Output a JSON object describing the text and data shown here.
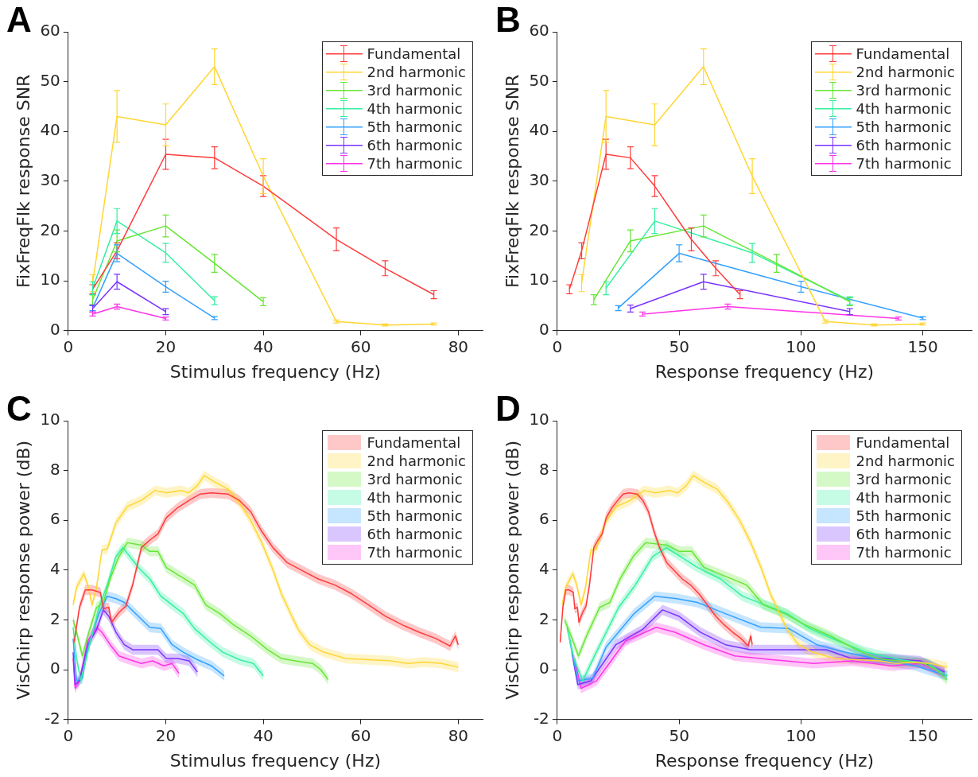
{
  "chart_data": [
    {
      "type": "line",
      "title": "A",
      "xlabel": "Stimulus frequency (Hz)",
      "ylabel": "FixFreqFlk response SNR",
      "xlim": [
        0,
        85
      ],
      "xticks": [
        0,
        20,
        40,
        60,
        80
      ],
      "ylim": [
        0,
        60
      ],
      "yticks": [
        0,
        10,
        20,
        30,
        40,
        50,
        60
      ],
      "legend": "top right",
      "series": [
        {
          "name": "Fundamental",
          "color": "#ff3b3b",
          "x": [
            5,
            10,
            20,
            30,
            40,
            55,
            65,
            75
          ],
          "values": [
            8.3,
            16,
            35.4,
            34.7,
            29,
            18.3,
            12.5,
            7.2
          ],
          "errors": [
            0.9,
            1.6,
            3,
            2.2,
            2.1,
            2.3,
            1.5,
            0.8
          ]
        },
        {
          "name": "2nd harmonic",
          "color": "#ffd633",
          "x": [
            5,
            10,
            20,
            30,
            40,
            55,
            65,
            75
          ],
          "values": [
            9.5,
            43,
            41.3,
            53,
            31,
            1.8,
            1.1,
            1.3
          ],
          "errors": [
            1.7,
            5.2,
            4.2,
            3.6,
            3.5,
            0.3,
            0.2,
            0.2
          ]
        },
        {
          "name": "3rd harmonic",
          "color": "#66e633",
          "x": [
            5,
            10,
            20,
            30,
            40
          ],
          "values": [
            6.2,
            18,
            21,
            13.5,
            5.8
          ],
          "errors": [
            1,
            2.2,
            2.2,
            1.8,
            0.8
          ]
        },
        {
          "name": "4th harmonic",
          "color": "#33f0a0",
          "x": [
            5,
            10,
            20,
            30
          ],
          "values": [
            8.5,
            22,
            15.6,
            6
          ],
          "errors": [
            1.3,
            2.5,
            1.9,
            0.8
          ]
        },
        {
          "name": "5th harmonic",
          "color": "#33a0ff",
          "x": [
            5,
            10,
            20,
            30
          ],
          "values": [
            4.5,
            15.5,
            8.8,
            2.5
          ],
          "errors": [
            0.5,
            1.7,
            1.1,
            0.3
          ]
        },
        {
          "name": "6th harmonic",
          "color": "#7a33ff",
          "x": [
            5,
            10,
            20
          ],
          "values": [
            4.4,
            9.8,
            3.8
          ],
          "errors": [
            0.7,
            1.5,
            0.6
          ]
        },
        {
          "name": "7th harmonic",
          "color": "#ff33e6",
          "x": [
            5,
            10,
            20
          ],
          "values": [
            3.3,
            4.8,
            2.4
          ],
          "errors": [
            0.4,
            0.5,
            0.3
          ]
        }
      ]
    },
    {
      "type": "line",
      "title": "B",
      "xlabel": "Response frequency (Hz)",
      "ylabel": "FixFreqFlk response SNR",
      "xlim": [
        0,
        170
      ],
      "xticks": [
        0,
        50,
        100,
        150
      ],
      "ylim": [
        0,
        60
      ],
      "yticks": [
        0,
        10,
        20,
        30,
        40,
        50,
        60
      ],
      "legend": "top right",
      "series": [
        {
          "name": "Fundamental",
          "color": "#ff3b3b",
          "x": [
            5,
            10,
            20,
            30,
            40,
            55,
            65,
            75
          ],
          "values": [
            8.3,
            16,
            35.4,
            34.7,
            29,
            18.3,
            12.5,
            7.2
          ],
          "errors": [
            0.9,
            1.6,
            3,
            2.2,
            2.1,
            2.3,
            1.5,
            0.8
          ]
        },
        {
          "name": "2nd harmonic",
          "color": "#ffd633",
          "x": [
            10,
            20,
            40,
            60,
            80,
            110,
            130,
            150
          ],
          "values": [
            9.5,
            43,
            41.3,
            53,
            31,
            1.8,
            1.1,
            1.3
          ],
          "errors": [
            1.7,
            5.2,
            4.2,
            3.6,
            3.5,
            0.3,
            0.2,
            0.2
          ]
        },
        {
          "name": "3rd harmonic",
          "color": "#66e633",
          "x": [
            15,
            30,
            60,
            90,
            120
          ],
          "values": [
            6.2,
            18,
            21,
            13.5,
            5.8
          ],
          "errors": [
            1,
            2.2,
            2.2,
            1.8,
            0.8
          ]
        },
        {
          "name": "4th harmonic",
          "color": "#33f0a0",
          "x": [
            20,
            40,
            80,
            120
          ],
          "values": [
            8.5,
            22,
            15.6,
            6
          ],
          "errors": [
            1.3,
            2.5,
            1.9,
            0.8
          ]
        },
        {
          "name": "5th harmonic",
          "color": "#33a0ff",
          "x": [
            25,
            50,
            100,
            150
          ],
          "values": [
            4.5,
            15.5,
            8.8,
            2.5
          ],
          "errors": [
            0.5,
            1.7,
            1.1,
            0.3
          ]
        },
        {
          "name": "6th harmonic",
          "color": "#7a33ff",
          "x": [
            30,
            60,
            120
          ],
          "values": [
            4.4,
            9.8,
            3.8
          ],
          "errors": [
            0.7,
            1.5,
            0.6
          ]
        },
        {
          "name": "7th harmonic",
          "color": "#ff33e6",
          "x": [
            35,
            70,
            140
          ],
          "values": [
            3.3,
            4.8,
            2.4
          ],
          "errors": [
            0.4,
            0.5,
            0.3
          ]
        }
      ]
    },
    {
      "type": "line",
      "title": "C",
      "xlabel": "Stimulus frequency (Hz)",
      "ylabel": "VisChirp response power (dB)",
      "xlim": [
        0,
        85
      ],
      "xticks": [
        0,
        20,
        40,
        60,
        80
      ],
      "ylim": [
        -2,
        10
      ],
      "yticks": [
        -2,
        0,
        2,
        4,
        6,
        8,
        10
      ],
      "legend": "top right",
      "series": [
        {
          "name": "Fundamental",
          "color": "#ff3b3b",
          "x": [
            1.2,
            2.3,
            3.5,
            4.9,
            6.6,
            7.2,
            8.3,
            8.9,
            10.4,
            11.8,
            13.2,
            15,
            16.7,
            18.4,
            20.1,
            22.4,
            24.8,
            27,
            29.4,
            32.8,
            35.1,
            37.4,
            39.7,
            42,
            44.9,
            47.8,
            51.2,
            54.7,
            58.1,
            61.6,
            65,
            68.5,
            72,
            75.4,
            78.3,
            79.4,
            80
          ],
          "values": [
            1.1,
            2.5,
            3.2,
            3.2,
            3.1,
            2.45,
            2.5,
            1.9,
            2.3,
            2.55,
            3.4,
            4.9,
            5.2,
            5.45,
            6.1,
            6.5,
            6.8,
            7.05,
            7.1,
            7.05,
            6.8,
            6.35,
            5.55,
            4.9,
            4.3,
            4,
            3.65,
            3.4,
            3.05,
            2.6,
            2.15,
            1.8,
            1.5,
            1.25,
            0.95,
            1.35,
            1
          ],
          "lower": [
            0.9,
            2.3,
            3,
            3,
            2.9,
            2.25,
            2.3,
            1.7,
            2.1,
            2.35,
            3.2,
            4.7,
            5,
            5.25,
            5.9,
            6.3,
            6.6,
            6.85,
            6.9,
            6.85,
            6.6,
            6.15,
            5.35,
            4.7,
            4.1,
            3.8,
            3.45,
            3.2,
            2.85,
            2.4,
            1.95,
            1.6,
            1.3,
            1.05,
            0.75,
            1.15,
            0.8
          ],
          "upper": [
            1.3,
            2.7,
            3.4,
            3.4,
            3.3,
            2.65,
            2.7,
            2.1,
            2.5,
            2.75,
            3.6,
            5.1,
            5.4,
            5.65,
            6.3,
            6.7,
            7,
            7.25,
            7.3,
            7.25,
            7,
            6.55,
            5.75,
            5.1,
            4.5,
            4.2,
            3.85,
            3.6,
            3.25,
            2.8,
            2.35,
            2,
            1.7,
            1.45,
            1.15,
            1.55,
            1.2
          ]
        },
        {
          "name": "2nd harmonic",
          "color": "#ffd633",
          "x": [
            1,
            1.7,
            3.2,
            4,
            4.9,
            5.8,
            6.9,
            8,
            9.8,
            12.1,
            15,
            17.8,
            20.1,
            23,
            24.7,
            26.5,
            27.9,
            29.9,
            32.8,
            35.1,
            37.4,
            39.7,
            42,
            43.7,
            45.5,
            47.2,
            49.5,
            52.4,
            56.9,
            61.6,
            66.2,
            69.7,
            73.1,
            76.6,
            80
          ],
          "values": [
            2.6,
            3.3,
            3.85,
            3.4,
            2.6,
            3.3,
            4.8,
            4.85,
            5.9,
            6.55,
            6.8,
            7.2,
            7.1,
            7.2,
            7.1,
            7.4,
            7.8,
            7.55,
            7.25,
            6.7,
            6,
            5.1,
            4,
            3.05,
            2.3,
            1.6,
            1,
            0.7,
            0.45,
            0.4,
            0.35,
            0.25,
            0.3,
            0.25,
            0.1
          ],
          "lower": [
            2.4,
            3.1,
            3.65,
            3.2,
            2.4,
            3.1,
            4.6,
            4.65,
            5.7,
            6.35,
            6.6,
            7,
            6.9,
            7,
            6.9,
            7.2,
            7.6,
            7.35,
            7.05,
            6.5,
            5.8,
            4.9,
            3.8,
            2.85,
            2.1,
            1.4,
            0.8,
            0.5,
            0.25,
            0.2,
            0.15,
            0.05,
            0.1,
            0.05,
            -0.1
          ],
          "upper": [
            2.8,
            3.5,
            4.05,
            3.6,
            2.8,
            3.5,
            5,
            5.05,
            6.1,
            6.75,
            7,
            7.4,
            7.3,
            7.4,
            7.3,
            7.6,
            8,
            7.75,
            7.45,
            6.9,
            6.2,
            5.3,
            4.2,
            3.25,
            2.5,
            1.8,
            1.2,
            0.9,
            0.65,
            0.6,
            0.55,
            0.45,
            0.5,
            0.45,
            0.3
          ]
        },
        {
          "name": "3rd harmonic",
          "color": "#66e633",
          "x": [
            1,
            1.7,
            2.9,
            4,
            5.8,
            7.2,
            8.6,
            10.4,
            12.1,
            15,
            16.7,
            18.4,
            20.1,
            23,
            25.9,
            28.2,
            31.1,
            33.9,
            37.4,
            40.9,
            43.7,
            46.6,
            50.1,
            51.8,
            53.3
          ],
          "values": [
            2,
            1.5,
            0.55,
            1.35,
            2.5,
            2.7,
            3.65,
            4.55,
            5.1,
            5,
            4.75,
            4.75,
            4.1,
            3.75,
            3.4,
            2.6,
            2.25,
            1.8,
            1.35,
            0.8,
            0.45,
            0.35,
            0.25,
            0,
            -0.4
          ],
          "lower": [
            1.8,
            1.3,
            0.35,
            1.15,
            2.3,
            2.5,
            3.45,
            4.35,
            4.9,
            4.8,
            4.55,
            4.55,
            3.9,
            3.55,
            3.2,
            2.4,
            2.05,
            1.6,
            1.15,
            0.6,
            0.25,
            0.15,
            0.05,
            -0.2,
            -0.6
          ],
          "upper": [
            2.2,
            1.7,
            0.75,
            1.55,
            2.7,
            2.9,
            3.85,
            4.75,
            5.3,
            5.2,
            4.95,
            4.95,
            4.3,
            3.95,
            3.6,
            2.8,
            2.45,
            2,
            1.55,
            1,
            0.65,
            0.55,
            0.45,
            0.2,
            -0.2
          ]
        },
        {
          "name": "4th harmonic",
          "color": "#33f0a0",
          "x": [
            1,
            1.7,
            2.6,
            4,
            6.3,
            8,
            9.8,
            11.2,
            12.6,
            14.4,
            16.7,
            19,
            21.3,
            23.6,
            25.9,
            28.8,
            31.7,
            35.1,
            38,
            40
          ],
          "values": [
            1.7,
            0.45,
            -0.45,
            0.7,
            2.5,
            3.4,
            4.55,
            4.9,
            4.55,
            4.1,
            3.65,
            2.95,
            2.6,
            2.25,
            1.65,
            1.15,
            0.7,
            0.4,
            0.25,
            -0.25
          ],
          "lower": [
            1.5,
            0.25,
            -0.65,
            0.5,
            2.3,
            3.2,
            4.35,
            4.7,
            4.35,
            3.9,
            3.45,
            2.75,
            2.4,
            2.05,
            1.45,
            0.95,
            0.5,
            0.2,
            0.05,
            -0.45
          ],
          "upper": [
            1.9,
            0.65,
            -0.25,
            0.9,
            2.7,
            3.6,
            4.75,
            5.1,
            4.75,
            4.3,
            3.85,
            3.15,
            2.8,
            2.45,
            1.85,
            1.35,
            0.9,
            0.6,
            0.45,
            -0.05
          ]
        },
        {
          "name": "5th harmonic",
          "color": "#33a0ff",
          "x": [
            1,
            1.7,
            2.9,
            4,
            6.3,
            8,
            9.8,
            11.5,
            13.8,
            16.7,
            19,
            21.3,
            23.6,
            26.5,
            29.4,
            32
          ],
          "values": [
            1.25,
            -0.45,
            -0.35,
            0.9,
            2.25,
            2.95,
            2.85,
            2.7,
            2.25,
            1.7,
            1.65,
            1,
            0.7,
            0.4,
            0.15,
            -0.25
          ],
          "lower": [
            1.05,
            -0.65,
            -0.55,
            0.7,
            2.05,
            2.75,
            2.65,
            2.5,
            2.05,
            1.5,
            1.45,
            0.8,
            0.5,
            0.2,
            -0.05,
            -0.45
          ],
          "upper": [
            1.45,
            -0.25,
            -0.15,
            1.1,
            2.45,
            3.15,
            3.05,
            2.9,
            2.45,
            1.9,
            1.85,
            1.2,
            0.9,
            0.6,
            0.35,
            -0.05
          ]
        },
        {
          "name": "6th harmonic",
          "color": "#7a33ff",
          "x": [
            1,
            1.4,
            2.3,
            4,
            5.8,
            7.2,
            8.3,
            9.8,
            11.5,
            13.2,
            15.5,
            18.4,
            20.1,
            22.4,
            24.8,
            26.5
          ],
          "values": [
            0.7,
            -0.6,
            -0.45,
            1,
            1.6,
            2.4,
            2.15,
            1.5,
            1,
            0.8,
            0.8,
            0.8,
            0.45,
            0.45,
            0.35,
            -0.1
          ],
          "lower": [
            0.5,
            -0.8,
            -0.65,
            0.8,
            1.4,
            2.2,
            1.95,
            1.3,
            0.8,
            0.6,
            0.6,
            0.6,
            0.25,
            0.25,
            0.15,
            -0.3
          ],
          "upper": [
            0.9,
            -0.4,
            -0.25,
            1.2,
            1.8,
            2.6,
            2.35,
            1.7,
            1.2,
            1,
            1,
            1,
            0.65,
            0.65,
            0.55,
            0.1
          ]
        },
        {
          "name": "7th harmonic",
          "color": "#ff33e6",
          "x": [
            1,
            1.4,
            2.3,
            4,
            5.8,
            6.9,
            8.6,
            10.4,
            12.6,
            15,
            17.3,
            19.6,
            21.3,
            22.7
          ],
          "values": [
            0.45,
            -0.75,
            -0.45,
            1.15,
            1.7,
            1.5,
            1,
            0.55,
            0.4,
            0.25,
            0.35,
            0.15,
            0.25,
            -0.15
          ],
          "lower": [
            0.25,
            -0.95,
            -0.65,
            0.95,
            1.5,
            1.3,
            0.8,
            0.35,
            0.2,
            0.05,
            0.15,
            -0.05,
            0.05,
            -0.35
          ],
          "upper": [
            0.65,
            -0.55,
            -0.25,
            1.35,
            1.9,
            1.7,
            1.2,
            0.75,
            0.6,
            0.45,
            0.55,
            0.35,
            0.45,
            0.05
          ]
        }
      ]
    },
    {
      "type": "line",
      "title": "D",
      "xlabel": "Response frequency (Hz)",
      "ylabel": "VisChirp response power (dB)",
      "xlim": [
        0,
        170
      ],
      "xticks": [
        0,
        50,
        100,
        150
      ],
      "ylim": [
        -2,
        10
      ],
      "yticks": [
        -2,
        0,
        2,
        4,
        6,
        8,
        10
      ],
      "legend": "top right",
      "series": [
        {
          "name": "Fundamental",
          "color": "#ff3b3b",
          "x": [
            1.2,
            2.3,
            3.5,
            4.9,
            6.6,
            7.2,
            8.3,
            8.9,
            10.4,
            11.8,
            13.2,
            15,
            16.7,
            18.4,
            20.1,
            22.4,
            24.8,
            27,
            29.4,
            32.8,
            35.1,
            37.4,
            39.7,
            42,
            44.9,
            47.8,
            51.2,
            54.7,
            58.1,
            61.6,
            65,
            68.5,
            72,
            75.4,
            78.3,
            79.4,
            80
          ],
          "values": [
            1.1,
            2.5,
            3.2,
            3.2,
            3.1,
            2.45,
            2.5,
            1.9,
            2.3,
            2.55,
            3.4,
            4.9,
            5.2,
            5.45,
            6.1,
            6.5,
            6.8,
            7.05,
            7.1,
            7.05,
            6.8,
            6.35,
            5.55,
            4.9,
            4.3,
            4,
            3.65,
            3.4,
            3.05,
            2.6,
            2.15,
            1.8,
            1.5,
            1.25,
            0.95,
            1.35,
            1
          ],
          "lower": [
            0.9,
            2.3,
            3,
            3,
            2.9,
            2.25,
            2.3,
            1.7,
            2.1,
            2.35,
            3.2,
            4.7,
            5,
            5.25,
            5.9,
            6.3,
            6.6,
            6.85,
            6.9,
            6.85,
            6.6,
            6.15,
            5.35,
            4.7,
            4.1,
            3.8,
            3.45,
            3.2,
            2.85,
            2.4,
            1.95,
            1.6,
            1.3,
            1.05,
            0.75,
            1.15,
            0.8
          ],
          "upper": [
            1.3,
            2.7,
            3.4,
            3.4,
            3.3,
            2.65,
            2.7,
            2.1,
            2.5,
            2.75,
            3.6,
            5.1,
            5.4,
            5.65,
            6.3,
            6.7,
            7,
            7.25,
            7.3,
            7.25,
            7,
            6.55,
            5.75,
            5.1,
            4.5,
            4.2,
            3.85,
            3.6,
            3.25,
            2.8,
            2.35,
            2,
            1.7,
            1.45,
            1.15,
            1.55,
            1.2
          ]
        },
        {
          "name": "2nd harmonic",
          "color": "#ffd633",
          "x": [
            2,
            3.4,
            6.4,
            8,
            9.8,
            11.6,
            13.8,
            16,
            19.6,
            24.2,
            30,
            35.6,
            40.2,
            46,
            49.4,
            53,
            55.8,
            59.8,
            65.6,
            70.2,
            74.8,
            79.4,
            84,
            87.4,
            91,
            94.4,
            99,
            104.8,
            113.8,
            123.2,
            132.4,
            139.4,
            146.2,
            153.2,
            160
          ],
          "values": [
            2.6,
            3.3,
            3.85,
            3.4,
            2.6,
            3.3,
            4.8,
            4.85,
            5.9,
            6.55,
            6.8,
            7.2,
            7.1,
            7.2,
            7.1,
            7.4,
            7.8,
            7.55,
            7.25,
            6.7,
            6,
            5.1,
            4,
            3.05,
            2.3,
            1.6,
            1,
            0.7,
            0.45,
            0.4,
            0.35,
            0.25,
            0.3,
            0.25,
            0.1
          ],
          "lower": [
            2.4,
            3.1,
            3.65,
            3.2,
            2.4,
            3.1,
            4.6,
            4.65,
            5.7,
            6.35,
            6.6,
            7,
            6.9,
            7,
            6.9,
            7.2,
            7.6,
            7.35,
            7.05,
            6.5,
            5.8,
            4.9,
            3.8,
            2.85,
            2.1,
            1.4,
            0.8,
            0.5,
            0.25,
            0.2,
            0.15,
            0.05,
            0.1,
            0.05,
            -0.1
          ],
          "upper": [
            2.8,
            3.5,
            4.05,
            3.6,
            2.8,
            3.5,
            5,
            5.05,
            6.1,
            6.75,
            7,
            7.4,
            7.3,
            7.4,
            7.3,
            7.6,
            8,
            7.75,
            7.45,
            6.9,
            6.2,
            5.3,
            4.2,
            3.25,
            2.5,
            1.8,
            1.2,
            0.9,
            0.65,
            0.6,
            0.55,
            0.45,
            0.5,
            0.45,
            0.3
          ]
        },
        {
          "name": "3rd harmonic",
          "color": "#66e633",
          "x": [
            3,
            5.1,
            8.7,
            12,
            17.4,
            21.6,
            25.8,
            31.2,
            36.3,
            45,
            50.1,
            55.2,
            60.3,
            69,
            77.7,
            84.6,
            93.3,
            101.7,
            112.2,
            122.7,
            131.1,
            139.8,
            150.3,
            155.4,
            159.9
          ],
          "values": [
            2,
            1.5,
            0.55,
            1.35,
            2.5,
            2.7,
            3.65,
            4.55,
            5.1,
            5,
            4.75,
            4.75,
            4.1,
            3.75,
            3.4,
            2.6,
            2.25,
            1.8,
            1.35,
            0.8,
            0.45,
            0.35,
            0.25,
            0,
            -0.4
          ],
          "lower": [
            1.8,
            1.3,
            0.35,
            1.15,
            2.3,
            2.5,
            3.45,
            4.35,
            4.9,
            4.8,
            4.55,
            4.55,
            3.9,
            3.55,
            3.2,
            2.4,
            2.05,
            1.6,
            1.15,
            0.6,
            0.25,
            0.15,
            0.05,
            -0.2,
            -0.6
          ],
          "upper": [
            2.2,
            1.7,
            0.75,
            1.55,
            2.7,
            2.9,
            3.85,
            4.75,
            5.3,
            5.2,
            4.95,
            4.95,
            4.3,
            3.95,
            3.6,
            2.8,
            2.45,
            2,
            1.55,
            1,
            0.65,
            0.55,
            0.45,
            0.2,
            -0.2
          ]
        },
        {
          "name": "4th harmonic",
          "color": "#33f0a0",
          "x": [
            4,
            6.8,
            10.4,
            16,
            25.2,
            32,
            39.2,
            44.8,
            50.4,
            57.6,
            66.8,
            76,
            85.2,
            94.4,
            103.6,
            115.2,
            126.8,
            140.4,
            152,
            160
          ],
          "values": [
            1.7,
            0.45,
            -0.45,
            0.7,
            2.5,
            3.4,
            4.55,
            4.9,
            4.55,
            4.1,
            3.65,
            2.95,
            2.6,
            2.25,
            1.65,
            1.15,
            0.7,
            0.4,
            0.25,
            -0.25
          ],
          "lower": [
            1.5,
            0.25,
            -0.65,
            0.5,
            2.3,
            3.2,
            4.35,
            4.7,
            4.35,
            3.9,
            3.45,
            2.75,
            2.4,
            2.05,
            1.45,
            0.95,
            0.5,
            0.2,
            0.05,
            -0.45
          ],
          "upper": [
            1.9,
            0.65,
            -0.25,
            0.9,
            2.7,
            3.6,
            4.75,
            5.1,
            4.75,
            4.3,
            3.85,
            3.15,
            2.8,
            2.45,
            1.85,
            1.35,
            0.9,
            0.6,
            0.45,
            -0.05
          ]
        },
        {
          "name": "5th harmonic",
          "color": "#33a0ff",
          "x": [
            5,
            8.5,
            14.5,
            20,
            31.5,
            40,
            49,
            57.5,
            69,
            83.5,
            95,
            106.5,
            118,
            132.5,
            147,
            160
          ],
          "values": [
            1.25,
            -0.45,
            -0.35,
            0.9,
            2.25,
            2.95,
            2.85,
            2.7,
            2.25,
            1.7,
            1.65,
            1,
            0.7,
            0.4,
            0.15,
            -0.25
          ],
          "lower": [
            1.05,
            -0.65,
            -0.55,
            0.7,
            2.05,
            2.75,
            2.65,
            2.5,
            2.05,
            1.5,
            1.45,
            0.8,
            0.5,
            0.2,
            -0.05,
            -0.45
          ],
          "upper": [
            1.45,
            -0.25,
            -0.15,
            1.1,
            2.45,
            3.15,
            3.05,
            2.9,
            2.45,
            1.9,
            1.85,
            1.2,
            0.9,
            0.6,
            0.35,
            -0.05
          ]
        },
        {
          "name": "6th harmonic",
          "color": "#7a33ff",
          "x": [
            6,
            8.4,
            13.8,
            24,
            34.8,
            43.2,
            49.8,
            58.8,
            69,
            79.2,
            93,
            110.4,
            120.6,
            134.4,
            148.8,
            159
          ],
          "values": [
            0.7,
            -0.6,
            -0.45,
            1,
            1.6,
            2.4,
            2.15,
            1.5,
            1,
            0.8,
            0.8,
            0.8,
            0.45,
            0.45,
            0.35,
            -0.1
          ],
          "lower": [
            0.5,
            -0.8,
            -0.65,
            0.8,
            1.4,
            2.2,
            1.95,
            1.3,
            0.8,
            0.6,
            0.6,
            0.6,
            0.25,
            0.25,
            0.15,
            -0.3
          ],
          "upper": [
            0.9,
            -0.4,
            -0.25,
            1.2,
            1.8,
            2.6,
            2.35,
            1.7,
            1.2,
            1,
            1,
            1,
            0.65,
            0.65,
            0.55,
            0.1
          ]
        },
        {
          "name": "7th harmonic",
          "color": "#ff33e6",
          "x": [
            7,
            9.8,
            16.1,
            28,
            40.6,
            48.3,
            60.2,
            72.8,
            88.2,
            105,
            121.1,
            137.2,
            149.1,
            158.9
          ],
          "values": [
            0.45,
            -0.75,
            -0.45,
            1.15,
            1.7,
            1.5,
            1,
            0.55,
            0.4,
            0.25,
            0.35,
            0.15,
            0.25,
            -0.15
          ],
          "lower": [
            0.25,
            -0.95,
            -0.65,
            0.95,
            1.5,
            1.3,
            0.8,
            0.35,
            0.2,
            0.05,
            0.15,
            -0.05,
            0.05,
            -0.35
          ],
          "upper": [
            0.65,
            -0.55,
            -0.25,
            1.35,
            1.9,
            1.7,
            1.2,
            0.75,
            0.6,
            0.45,
            0.55,
            0.35,
            0.45,
            0.05
          ]
        }
      ]
    }
  ]
}
